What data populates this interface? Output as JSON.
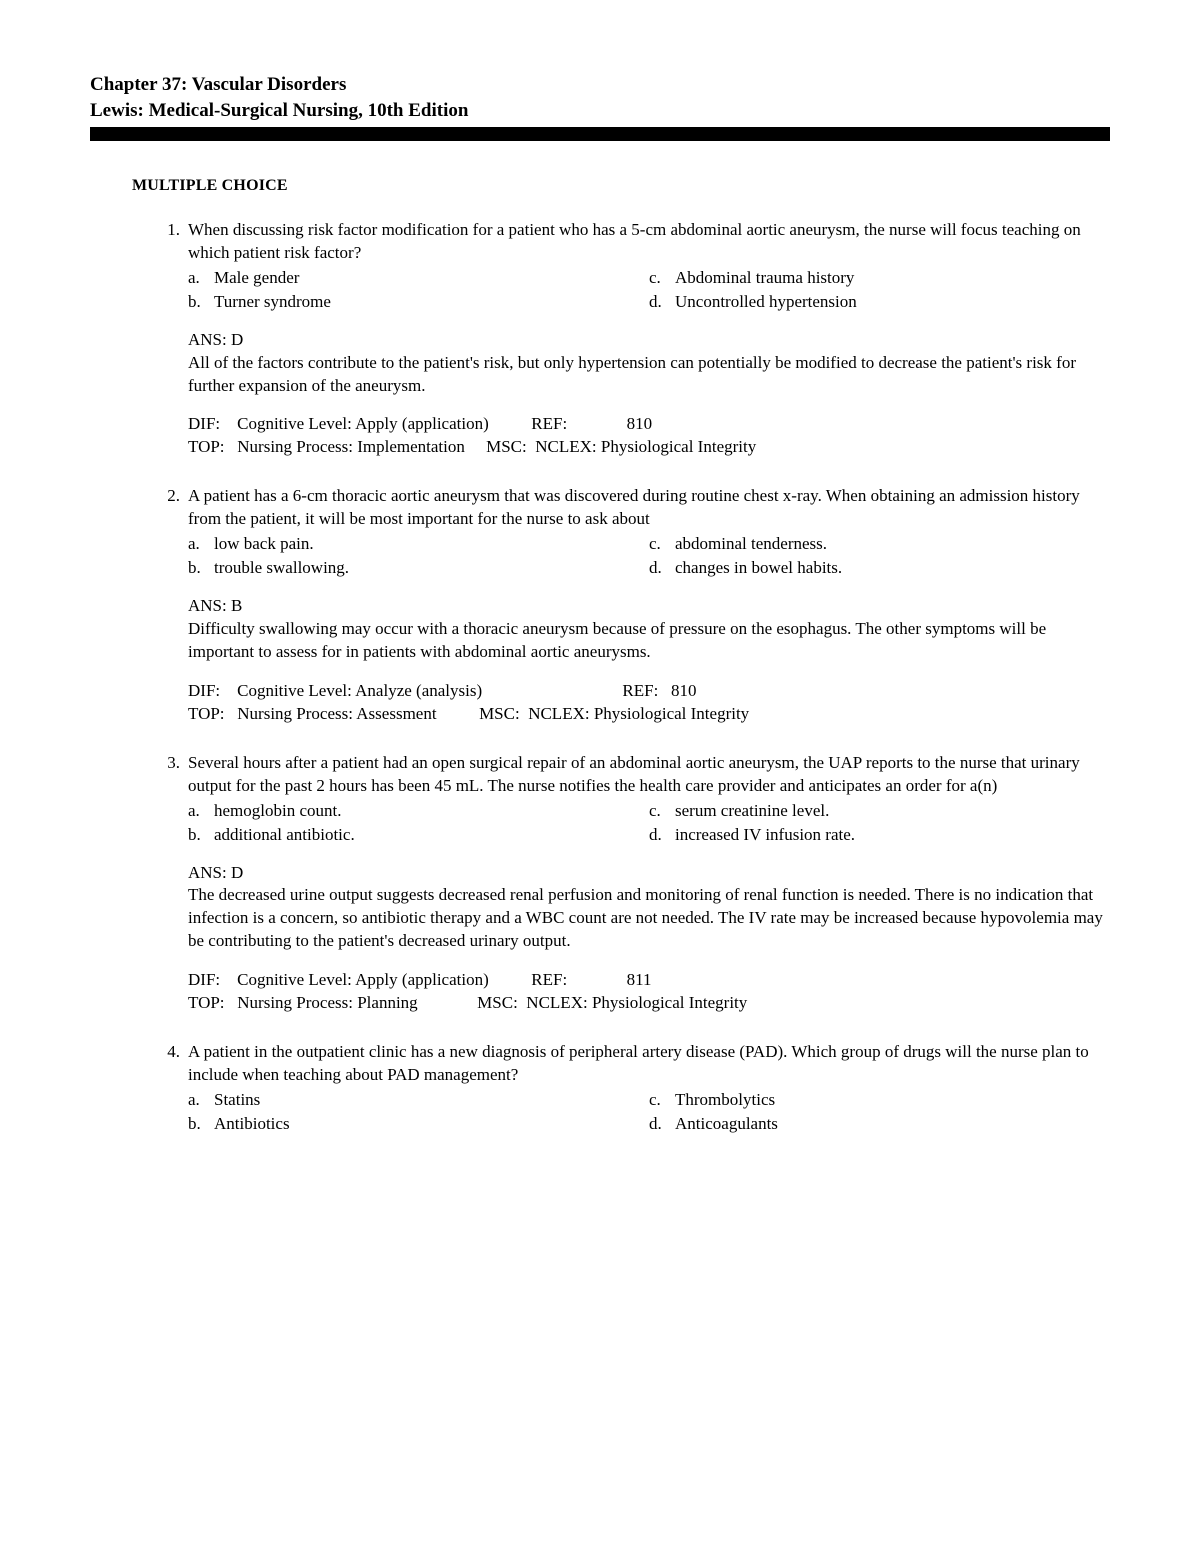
{
  "header": {
    "line1": "Chapter 37: Vascular Disorders",
    "line2": "Lewis: Medical-Surgical Nursing, 10th Edition"
  },
  "section_title": "MULTIPLE CHOICE",
  "questions": [
    {
      "num": "1.",
      "stem": "When discussing risk factor modification for a patient who has a 5-cm abdominal aortic aneurysm, the nurse will focus teaching on which patient risk factor?",
      "choices": {
        "a": "Male gender",
        "b": "Turner syndrome",
        "c": "Abdominal trauma history",
        "d": "Uncontrolled hypertension"
      },
      "ans_label": "ANS:",
      "ans": "D",
      "rationale": "All of the factors contribute to the patient's risk, but only hypertension can potentially be modified to decrease the patient's risk for further expansion of the aneurysm.",
      "meta": {
        "dif_label": "DIF:",
        "dif": "Cognitive Level: Apply (application)",
        "ref_label": "REF:",
        "ref": "810",
        "top_label": "TOP:",
        "top": "Nursing Process: Implementation",
        "msc_label": "MSC:",
        "msc": "NCLEX: Physiological Integrity"
      }
    },
    {
      "num": "2.",
      "stem": "A patient has a 6-cm thoracic aortic aneurysm that was discovered during routine chest x-ray. When obtaining an admission history from the patient, it will be most important for the nurse to ask about",
      "choices": {
        "a": "low back pain.",
        "b": "trouble swallowing.",
        "c": "abdominal tenderness.",
        "d": "changes in bowel habits."
      },
      "ans_label": "ANS:",
      "ans": "B",
      "rationale": "Difficulty swallowing may occur with a thoracic aneurysm because of pressure on the esophagus. The other symptoms will be important to assess for in patients with abdominal aortic aneurysms.",
      "meta": {
        "dif_label": "DIF:",
        "dif": "Cognitive Level: Analyze (analysis)",
        "ref_label": "REF:",
        "ref": "810",
        "top_label": "TOP:",
        "top": "Nursing Process: Assessment",
        "msc_label": "MSC:",
        "msc": "NCLEX: Physiological Integrity"
      }
    },
    {
      "num": "3.",
      "stem": "Several hours after a patient had an open surgical repair of an abdominal aortic aneurysm, the UAP reports to the nurse that urinary output for the past 2 hours has been 45 mL. The nurse notifies the health care provider and anticipates an order for a(n)",
      "choices": {
        "a": "hemoglobin count.",
        "b": "additional antibiotic.",
        "c": "serum creatinine level.",
        "d": "increased IV infusion rate."
      },
      "ans_label": "ANS:",
      "ans": "D",
      "rationale": "The decreased urine output suggests decreased renal perfusion and monitoring of renal function is needed. There is no indication that infection is a concern, so antibiotic therapy and a WBC count are not needed. The IV rate may be increased because hypovolemia may be contributing to the patient's decreased urinary output.",
      "meta": {
        "dif_label": "DIF:",
        "dif": "Cognitive Level: Apply (application)",
        "ref_label": "REF:",
        "ref": "811",
        "top_label": "TOP:",
        "top": "Nursing Process: Planning",
        "msc_label": "MSC:",
        "msc": "NCLEX: Physiological Integrity"
      }
    },
    {
      "num": "4.",
      "stem": "A patient in the outpatient clinic has a new diagnosis of peripheral artery disease (PAD). Which group of drugs will the nurse plan to include when teaching about PAD management?",
      "choices": {
        "a": "Statins",
        "b": "Antibiotics",
        "c": "Thrombolytics",
        "d": "Anticoagulants"
      },
      "ans_label": "",
      "ans": "",
      "rationale": "",
      "meta": null
    }
  ]
}
